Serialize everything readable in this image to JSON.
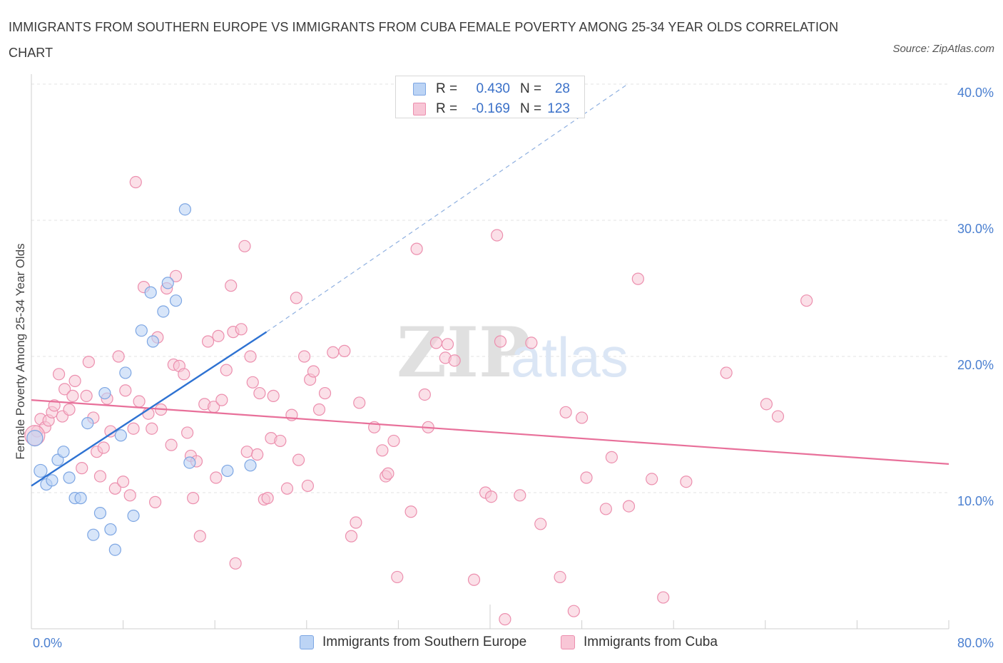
{
  "title": "IMMIGRANTS FROM SOUTHERN EUROPE VS IMMIGRANTS FROM CUBA FEMALE POVERTY AMONG 25-34 YEAR OLDS CORRELATION CHART",
  "source": "Source: ZipAtlas.com",
  "watermark": {
    "zip": "ZIP",
    "atlas": "atlas"
  },
  "legend": {
    "series1": {
      "r_label": "R =",
      "r_value": "0.430",
      "n_label": "N =",
      "n_value": "28"
    },
    "series2": {
      "r_label": "R =",
      "r_value": "-0.169",
      "n_label": "N =",
      "n_value": "123"
    }
  },
  "colors": {
    "blue_fill": "#bcd4f5",
    "blue_stroke": "#7da6e3",
    "blue_line": "#2e72d2",
    "pink_fill": "#f8c6d6",
    "pink_stroke": "#ec8fae",
    "pink_line": "#e8709a",
    "grid": "#e3e3e3",
    "axis_label": "#4a7fd0"
  },
  "chart_data": {
    "type": "scatter",
    "title": "IMMIGRANTS FROM SOUTHERN EUROPE VS IMMIGRANTS FROM CUBA FEMALE POVERTY AMONG 25-34 YEAR OLDS CORRELATION CHART",
    "xlabel": "",
    "ylabel": "Female Poverty Among 25-34 Year Olds",
    "xlim": [
      0,
      80
    ],
    "ylim": [
      0,
      40
    ],
    "x_tick_labels": [
      "0.0%",
      "80.0%"
    ],
    "y_ticks": [
      10,
      20,
      30,
      40
    ],
    "y_tick_labels": [
      "10.0%",
      "20.0%",
      "30.0%",
      "40.0%"
    ],
    "legend_position": "top-center",
    "series": [
      {
        "name": "Immigrants from Southern Europe",
        "r": 0.43,
        "n": 28,
        "trend": {
          "x0": 0,
          "y0": 10.5,
          "x1": 20.5,
          "y1": 21.8,
          "dash_to_x": 52,
          "dash_to_y": 40
        },
        "points": [
          [
            0.3,
            14.0
          ],
          [
            0.8,
            11.6
          ],
          [
            1.3,
            10.6
          ],
          [
            1.8,
            10.9
          ],
          [
            2.3,
            12.4
          ],
          [
            2.8,
            13.0
          ],
          [
            3.3,
            11.1
          ],
          [
            3.8,
            9.6
          ],
          [
            4.3,
            9.6
          ],
          [
            4.9,
            15.1
          ],
          [
            5.4,
            6.9
          ],
          [
            6.0,
            8.5
          ],
          [
            6.4,
            17.3
          ],
          [
            6.9,
            7.3
          ],
          [
            7.3,
            5.8
          ],
          [
            7.8,
            14.2
          ],
          [
            8.2,
            18.8
          ],
          [
            8.9,
            8.3
          ],
          [
            9.6,
            21.9
          ],
          [
            10.4,
            24.7
          ],
          [
            10.6,
            21.1
          ],
          [
            11.5,
            23.3
          ],
          [
            11.9,
            25.4
          ],
          [
            12.6,
            24.1
          ],
          [
            13.4,
            30.8
          ],
          [
            13.8,
            12.2
          ],
          [
            17.1,
            11.6
          ],
          [
            19.1,
            12.0
          ]
        ]
      },
      {
        "name": "Immigrants from Cuba",
        "r": -0.169,
        "n": 123,
        "trend": {
          "x0": 0,
          "y0": 16.8,
          "x1": 80,
          "y1": 12.1
        },
        "points": [
          [
            0.5,
            14.5
          ],
          [
            0.8,
            15.4
          ],
          [
            1.2,
            14.8
          ],
          [
            1.5,
            15.3
          ],
          [
            1.8,
            15.9
          ],
          [
            2.0,
            16.4
          ],
          [
            2.4,
            18.7
          ],
          [
            2.7,
            15.6
          ],
          [
            2.9,
            17.6
          ],
          [
            3.3,
            16.1
          ],
          [
            3.6,
            17.1
          ],
          [
            3.8,
            18.2
          ],
          [
            4.4,
            11.8
          ],
          [
            4.8,
            17.1
          ],
          [
            5.0,
            19.6
          ],
          [
            5.4,
            15.5
          ],
          [
            5.7,
            13.0
          ],
          [
            6.0,
            11.2
          ],
          [
            6.3,
            13.3
          ],
          [
            6.6,
            16.9
          ],
          [
            6.9,
            14.5
          ],
          [
            7.3,
            10.3
          ],
          [
            7.6,
            20.0
          ],
          [
            8.0,
            10.8
          ],
          [
            8.2,
            17.5
          ],
          [
            8.6,
            9.8
          ],
          [
            8.9,
            14.7
          ],
          [
            9.1,
            32.8
          ],
          [
            9.4,
            16.7
          ],
          [
            9.8,
            25.1
          ],
          [
            10.2,
            15.8
          ],
          [
            10.5,
            14.7
          ],
          [
            10.8,
            9.3
          ],
          [
            11.0,
            21.4
          ],
          [
            11.3,
            16.1
          ],
          [
            11.8,
            25.0
          ],
          [
            12.2,
            13.5
          ],
          [
            12.4,
            19.4
          ],
          [
            12.6,
            25.9
          ],
          [
            12.9,
            19.3
          ],
          [
            13.3,
            18.7
          ],
          [
            13.6,
            14.4
          ],
          [
            13.9,
            12.7
          ],
          [
            14.1,
            9.6
          ],
          [
            14.4,
            12.3
          ],
          [
            14.7,
            6.8
          ],
          [
            15.1,
            16.5
          ],
          [
            15.4,
            21.1
          ],
          [
            15.9,
            16.3
          ],
          [
            16.1,
            11.1
          ],
          [
            16.3,
            21.5
          ],
          [
            16.6,
            16.8
          ],
          [
            17.0,
            19.0
          ],
          [
            17.4,
            25.2
          ],
          [
            17.6,
            21.8
          ],
          [
            17.8,
            4.8
          ],
          [
            18.3,
            22.0
          ],
          [
            18.6,
            28.1
          ],
          [
            18.8,
            13.0
          ],
          [
            19.1,
            20.0
          ],
          [
            19.3,
            18.1
          ],
          [
            19.7,
            12.8
          ],
          [
            19.9,
            17.3
          ],
          [
            20.3,
            9.5
          ],
          [
            20.6,
            9.6
          ],
          [
            20.9,
            14.0
          ],
          [
            21.1,
            17.1
          ],
          [
            21.7,
            13.8
          ],
          [
            22.3,
            10.3
          ],
          [
            22.7,
            15.7
          ],
          [
            23.1,
            24.3
          ],
          [
            23.3,
            12.4
          ],
          [
            23.8,
            20.0
          ],
          [
            24.1,
            10.5
          ],
          [
            24.3,
            18.3
          ],
          [
            24.6,
            18.9
          ],
          [
            25.1,
            16.1
          ],
          [
            25.6,
            17.3
          ],
          [
            26.3,
            20.3
          ],
          [
            27.3,
            20.4
          ],
          [
            27.9,
            6.8
          ],
          [
            28.3,
            7.8
          ],
          [
            28.6,
            16.6
          ],
          [
            29.9,
            14.8
          ],
          [
            30.6,
            13.1
          ],
          [
            30.9,
            11.2
          ],
          [
            31.1,
            11.4
          ],
          [
            31.6,
            13.8
          ],
          [
            31.9,
            3.8
          ],
          [
            33.1,
            8.6
          ],
          [
            33.6,
            27.9
          ],
          [
            34.3,
            17.2
          ],
          [
            34.6,
            14.8
          ],
          [
            35.3,
            21.0
          ],
          [
            36.1,
            19.9
          ],
          [
            36.3,
            20.9
          ],
          [
            36.9,
            19.7
          ],
          [
            38.6,
            3.6
          ],
          [
            39.6,
            10.0
          ],
          [
            40.1,
            9.7
          ],
          [
            40.6,
            28.9
          ],
          [
            40.9,
            21.1
          ],
          [
            41.3,
            0.7
          ],
          [
            42.6,
            9.8
          ],
          [
            43.6,
            21.0
          ],
          [
            44.4,
            7.7
          ],
          [
            46.1,
            3.8
          ],
          [
            46.6,
            15.9
          ],
          [
            47.3,
            1.3
          ],
          [
            48.0,
            15.5
          ],
          [
            48.4,
            11.1
          ],
          [
            50.1,
            8.8
          ],
          [
            50.6,
            12.6
          ],
          [
            52.1,
            9.0
          ],
          [
            52.9,
            25.7
          ],
          [
            54.1,
            11.0
          ],
          [
            55.1,
            2.3
          ],
          [
            57.1,
            10.8
          ],
          [
            60.6,
            18.8
          ],
          [
            64.1,
            16.5
          ],
          [
            65.1,
            15.6
          ],
          [
            67.6,
            24.1
          ]
        ]
      }
    ]
  },
  "bottom_legend": {
    "item1": "Immigrants from Southern Europe",
    "item2": "Immigrants from Cuba"
  }
}
